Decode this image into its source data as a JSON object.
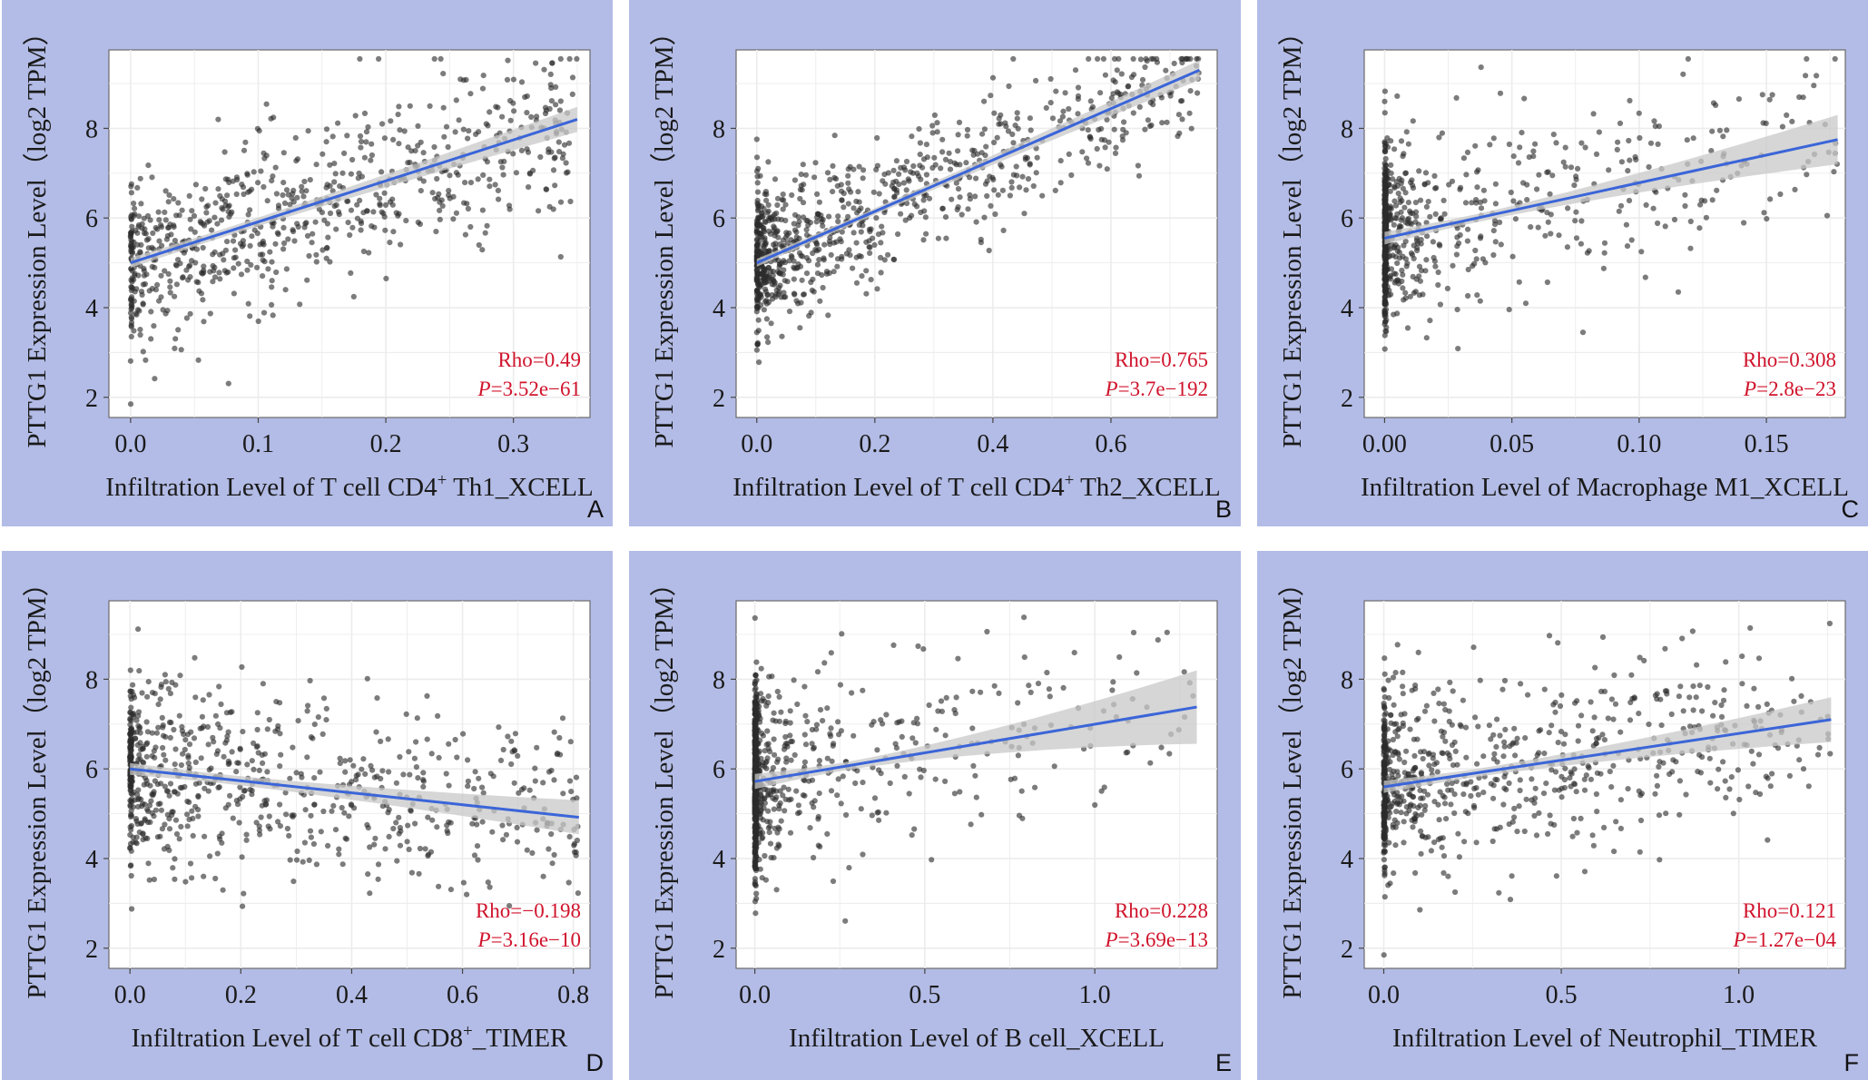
{
  "colors": {
    "panel_background": "#b3bce6",
    "plot_background": "#ffffff",
    "grid": "#ececec",
    "points": "#2b2b2b",
    "fit_line": "#3b65d8",
    "confidence_band": "#c8c8c8",
    "stats_text": "#d0142c"
  },
  "chart_data": [
    {
      "type": "scatter",
      "letter": "A",
      "xlabel": "Infiltration Level of T cell CD4",
      "xlabel_sup": "+",
      "xlabel_rest": " Th1_XCELL",
      "ylabel": "PTTG1 Expression Level（log2 TPM）",
      "xlim": [
        -0.017,
        0.36
      ],
      "ylim": [
        1.55,
        9.75
      ],
      "x_ticks": [
        0.0,
        0.1,
        0.2,
        0.3
      ],
      "x_tick_labels": [
        "0.0",
        "0.1",
        "0.2",
        "0.3"
      ],
      "y_ticks": [
        2,
        4,
        6,
        8
      ],
      "y_tick_labels": [
        "2",
        "4",
        "6",
        "8"
      ],
      "x_range": [
        0.0,
        0.35
      ],
      "x_skew": 1.4,
      "n_points": 760,
      "zero_fraction": 0.06,
      "fit": {
        "x": [
          0.0,
          0.35
        ],
        "y": [
          5.0,
          8.2
        ]
      },
      "ci_half_width": [
        0.09,
        0.28
      ],
      "y_noise": 0.95,
      "rho_label": "Rho=0.49",
      "p_prefix": "P",
      "p_value": "=3.52e−61"
    },
    {
      "type": "scatter",
      "letter": "B",
      "xlabel": "Infiltration Level of T cell CD4",
      "xlabel_sup": "+",
      "xlabel_rest": " Th2_XCELL",
      "ylabel": "PTTG1 Expression Level（log2 TPM）",
      "xlim": [
        -0.035,
        0.78
      ],
      "ylim": [
        1.55,
        9.75
      ],
      "x_ticks": [
        0.0,
        0.2,
        0.4,
        0.6
      ],
      "x_tick_labels": [
        "0.0",
        "0.2",
        "0.4",
        "0.6"
      ],
      "y_ticks": [
        2,
        4,
        6,
        8
      ],
      "y_tick_labels": [
        "2",
        "4",
        "6",
        "8"
      ],
      "x_range": [
        0.0,
        0.75
      ],
      "x_skew": 2.3,
      "n_points": 900,
      "zero_fraction": 0.04,
      "fit": {
        "x": [
          0.0,
          0.75
        ],
        "y": [
          5.0,
          9.3
        ]
      },
      "ci_half_width": [
        0.07,
        0.22
      ],
      "y_noise": 0.75,
      "rho_label": "Rho=0.765",
      "p_prefix": "P",
      "p_value": "=3.7e−192"
    },
    {
      "type": "scatter",
      "letter": "C",
      "xlabel": "Infiltration Level of Macrophage M1_XCELL",
      "xlabel_sup": "",
      "xlabel_rest": "",
      "ylabel": "PTTG1 Expression Level（log2 TPM）",
      "xlim": [
        -0.008,
        0.181
      ],
      "ylim": [
        1.55,
        9.75
      ],
      "x_ticks": [
        0.0,
        0.05,
        0.1,
        0.15
      ],
      "x_tick_labels": [
        "0.00",
        "0.05",
        "0.10",
        "0.15"
      ],
      "y_ticks": [
        2,
        4,
        6,
        8
      ],
      "y_tick_labels": [
        "2",
        "4",
        "6",
        "8"
      ],
      "x_range": [
        0.0,
        0.178
      ],
      "x_skew": 3.0,
      "n_points": 760,
      "zero_fraction": 0.3,
      "fit": {
        "x": [
          0.0,
          0.178
        ],
        "y": [
          5.55,
          7.75
        ]
      },
      "ci_half_width": [
        0.09,
        0.55
      ],
      "y_noise": 1.0,
      "rho_label": "Rho=0.308",
      "p_prefix": "P",
      "p_value": "=2.8e−23"
    },
    {
      "type": "scatter",
      "letter": "D",
      "xlabel": "Infiltration Level of T cell CD8",
      "xlabel_sup": "+",
      "xlabel_rest": "_TIMER",
      "ylabel": "PTTG1 Expression Level（log2 TPM）",
      "xlim": [
        -0.038,
        0.83
      ],
      "ylim": [
        1.55,
        9.75
      ],
      "x_ticks": [
        0.0,
        0.2,
        0.4,
        0.6,
        0.8
      ],
      "x_tick_labels": [
        "0.0",
        "0.2",
        "0.4",
        "0.6",
        "0.8"
      ],
      "y_ticks": [
        2,
        4,
        6,
        8
      ],
      "y_tick_labels": [
        "2",
        "4",
        "6",
        "8"
      ],
      "x_range": [
        0.0,
        0.81
      ],
      "x_skew": 1.9,
      "n_points": 760,
      "zero_fraction": 0.1,
      "fit": {
        "x": [
          0.0,
          0.81
        ],
        "y": [
          6.0,
          4.92
        ]
      },
      "ci_half_width": [
        0.1,
        0.38
      ],
      "y_noise": 1.05,
      "rho_label": "Rho=−0.198",
      "p_prefix": "P",
      "p_value": "=3.16e−10"
    },
    {
      "type": "scatter",
      "letter": "E",
      "xlabel": "Infiltration Level of B cell_XCELL",
      "xlabel_sup": "",
      "xlabel_rest": "",
      "ylabel": "PTTG1 Expression Level（log2 TPM）",
      "xlim": [
        -0.055,
        1.36
      ],
      "ylim": [
        1.55,
        9.75
      ],
      "x_ticks": [
        0.0,
        0.5,
        1.0
      ],
      "x_tick_labels": [
        "0.0",
        "0.5",
        "1.0"
      ],
      "y_ticks": [
        2,
        4,
        6,
        8
      ],
      "y_tick_labels": [
        "2",
        "4",
        "6",
        "8"
      ],
      "x_range": [
        0.0,
        1.3
      ],
      "x_skew": 4.5,
      "n_points": 820,
      "zero_fraction": 0.32,
      "fit": {
        "x": [
          0.0,
          1.3
        ],
        "y": [
          5.72,
          7.38
        ]
      },
      "ci_half_width": [
        0.09,
        0.82
      ],
      "y_noise": 1.05,
      "rho_label": "Rho=0.228",
      "p_prefix": "P",
      "p_value": "=3.69e−13"
    },
    {
      "type": "scatter",
      "letter": "F",
      "xlabel": "Infiltration Level of Neutrophil_TIMER",
      "xlabel_sup": "",
      "xlabel_rest": "",
      "ylabel": "PTTG1 Expression Level（log2 TPM）",
      "xlim": [
        -0.055,
        1.3
      ],
      "ylim": [
        1.55,
        9.75
      ],
      "x_ticks": [
        0.0,
        0.5,
        1.0
      ],
      "x_tick_labels": [
        "0.0",
        "0.5",
        "1.0"
      ],
      "y_ticks": [
        2,
        4,
        6,
        8
      ],
      "y_tick_labels": [
        "2",
        "4",
        "6",
        "8"
      ],
      "x_range": [
        0.0,
        1.26
      ],
      "x_skew": 2.6,
      "n_points": 780,
      "zero_fraction": 0.12,
      "fit": {
        "x": [
          0.0,
          1.26
        ],
        "y": [
          5.6,
          7.1
        ]
      },
      "ci_half_width": [
        0.09,
        0.5
      ],
      "y_noise": 1.0,
      "rho_label": "Rho=0.121",
      "p_prefix": "P",
      "p_value": "=1.27e−04"
    }
  ]
}
